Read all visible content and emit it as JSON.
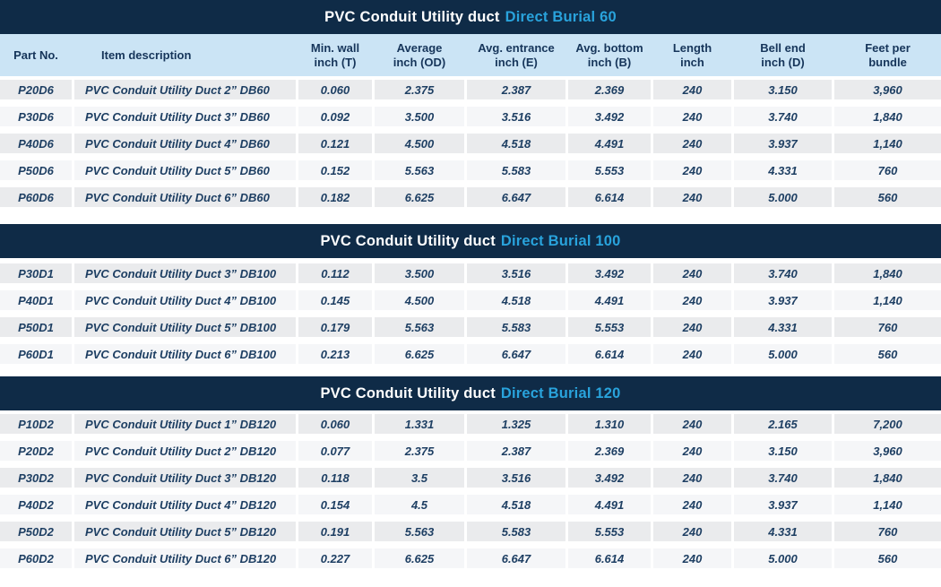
{
  "colors": {
    "banner_bg": "#0f2b47",
    "banner_text": "#ffffff",
    "accent": "#29a3dc",
    "header_row_bg": "#cbe4f5",
    "header_text": "#16355a",
    "row_odd_bg": "#eaebed",
    "row_even_bg": "#f5f6f8",
    "data_text": "#1e3f63"
  },
  "columns": [
    "Part No.",
    "Item description",
    "Min. wall\ninch (T)",
    "Average\ninch (OD)",
    "Avg. entrance\ninch (E)",
    "Avg. bottom\ninch (B)",
    "Length\ninch",
    "Bell end\ninch (D)",
    "Feet per\nbundle"
  ],
  "tables": [
    {
      "title_prefix": "PVC Conduit Utility duct",
      "title_accent": "Direct Burial 60",
      "rows": [
        [
          "P20D6",
          "PVC Conduit Utility Duct 2” DB60",
          "0.060",
          "2.375",
          "2.387",
          "2.369",
          "240",
          "3.150",
          "3,960"
        ],
        [
          "P30D6",
          "PVC Conduit Utility Duct 3” DB60",
          "0.092",
          "3.500",
          "3.516",
          "3.492",
          "240",
          "3.740",
          "1,840"
        ],
        [
          "P40D6",
          "PVC Conduit Utility Duct 4” DB60",
          "0.121",
          "4.500",
          "4.518",
          "4.491",
          "240",
          "3.937",
          "1,140"
        ],
        [
          "P50D6",
          "PVC Conduit Utility Duct 5” DB60",
          "0.152",
          "5.563",
          "5.583",
          "5.553",
          "240",
          "4.331",
          "760"
        ],
        [
          "P60D6",
          "PVC Conduit Utility Duct 6” DB60",
          "0.182",
          "6.625",
          "6.647",
          "6.614",
          "240",
          "5.000",
          "560"
        ]
      ]
    },
    {
      "title_prefix": "PVC Conduit Utility duct",
      "title_accent": "Direct Burial 100",
      "rows": [
        [
          "P30D1",
          "PVC Conduit Utility Duct 3” DB100",
          "0.112",
          "3.500",
          "3.516",
          "3.492",
          "240",
          "3.740",
          "1,840"
        ],
        [
          "P40D1",
          "PVC Conduit Utility Duct 4” DB100",
          "0.145",
          "4.500",
          "4.518",
          "4.491",
          "240",
          "3.937",
          "1,140"
        ],
        [
          "P50D1",
          "PVC Conduit Utility Duct 5” DB100",
          "0.179",
          "5.563",
          "5.583",
          "5.553",
          "240",
          "4.331",
          "760"
        ],
        [
          "P60D1",
          "PVC Conduit Utility Duct 6” DB100",
          "0.213",
          "6.625",
          "6.647",
          "6.614",
          "240",
          "5.000",
          "560"
        ]
      ]
    },
    {
      "title_prefix": "PVC Conduit Utility duct",
      "title_accent": "Direct Burial 120",
      "rows": [
        [
          "P10D2",
          "PVC Conduit Utility Duct 1” DB120",
          "0.060",
          "1.331",
          "1.325",
          "1.310",
          "240",
          "2.165",
          "7,200"
        ],
        [
          "P20D2",
          "PVC Conduit Utility Duct 2” DB120",
          "0.077",
          "2.375",
          "2.387",
          "2.369",
          "240",
          "3.150",
          "3,960"
        ],
        [
          "P30D2",
          "PVC Conduit Utility Duct 3” DB120",
          "0.118",
          "3.5",
          "3.516",
          "3.492",
          "240",
          "3.740",
          "1,840"
        ],
        [
          "P40D2",
          "PVC Conduit Utility Duct 4” DB120",
          "0.154",
          "4.5",
          "4.518",
          "4.491",
          "240",
          "3.937",
          "1,140"
        ],
        [
          "P50D2",
          "PVC Conduit Utility Duct 5” DB120",
          "0.191",
          "5.563",
          "5.583",
          "5.553",
          "240",
          "4.331",
          "760"
        ],
        [
          "P60D2",
          "PVC Conduit Utility Duct 6” DB120",
          "0.227",
          "6.625",
          "6.647",
          "6.614",
          "240",
          "5.000",
          "560"
        ]
      ]
    }
  ]
}
